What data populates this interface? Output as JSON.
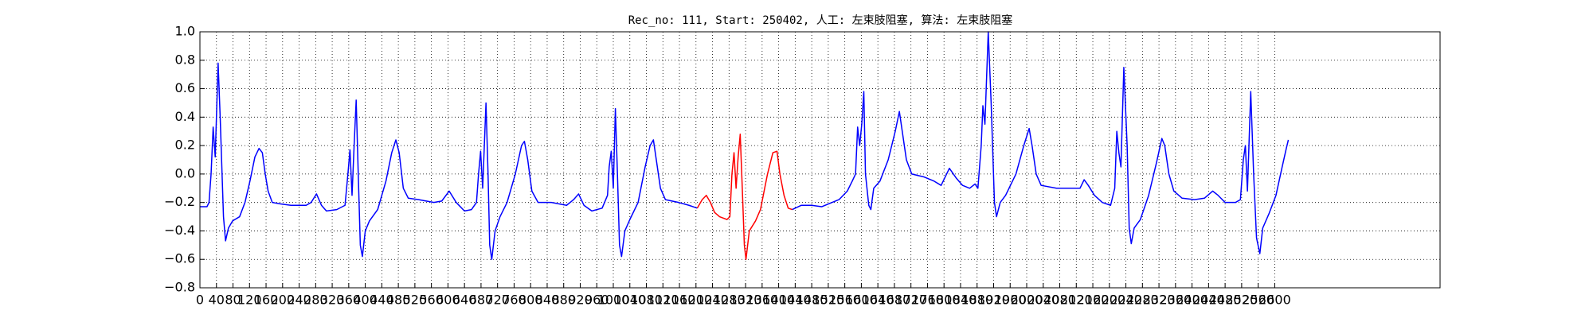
{
  "chart_data": {
    "type": "line",
    "title": "Rec_no: 111, Start: 250402, 人工: 左束肢阻塞, 算法: 左束肢阻塞",
    "xlim": [
      0,
      3000
    ],
    "ylim": [
      -0.8,
      1.0
    ],
    "xticks": [
      0,
      40,
      80,
      120,
      160,
      200,
      240,
      280,
      320,
      360,
      400,
      440,
      480,
      520,
      560,
      600,
      640,
      680,
      720,
      760,
      800,
      840,
      880,
      920,
      960,
      1000,
      1040,
      1080,
      1120,
      1160,
      1200,
      1240,
      1280,
      1320,
      1360,
      1400,
      1440,
      1480,
      1520,
      1560,
      1600,
      1640,
      1680,
      1720,
      1760,
      1800,
      1840,
      1880,
      1920,
      1960,
      2000,
      2040,
      2080,
      2120,
      2160,
      2200,
      2240,
      2280,
      2320,
      2360,
      2400,
      2440,
      2480,
      2520,
      2560,
      2600
    ],
    "yticks": [
      {
        "value": -0.8,
        "label": "−0.8"
      },
      {
        "value": -0.6,
        "label": "−0.6"
      },
      {
        "value": -0.4,
        "label": "−0.4"
      },
      {
        "value": -0.2,
        "label": "−0.2"
      },
      {
        "value": 0,
        "label": "0.0"
      },
      {
        "value": 0.2,
        "label": "0.2"
      },
      {
        "value": 0.4,
        "label": "0.4"
      },
      {
        "value": 0.6,
        "label": "0.6"
      },
      {
        "value": 0.8,
        "label": "0.8"
      },
      {
        "value": 1.0,
        "label": "1.0"
      }
    ],
    "grid": true,
    "series": [
      {
        "color": "#0000ff",
        "x": [
          0,
          17,
          22,
          27,
          32,
          37,
          44,
          49,
          57,
          62,
          69,
          79,
          96,
          109,
          121,
          133,
          143,
          151,
          158,
          165,
          175,
          195,
          220,
          257,
          269,
          282,
          294,
          306,
          331,
          351,
          358,
          363,
          368,
          373,
          378,
          383,
          388,
          393,
          400,
          410,
          430,
          450,
          464,
          474,
          482,
          492,
          504,
          529,
          566,
          585,
          603,
          620,
          640,
          657,
          669,
          674,
          679,
          684,
          692,
          697,
          701,
          706,
          714,
          726,
          743,
          763,
          778,
          785,
          793,
          803,
          818,
          850,
          887,
          904,
          916,
          929,
          948,
          973,
          986,
          990,
          995,
          1000,
          1005,
          1010,
          1015,
          1020,
          1028,
          1040,
          1060,
          1077,
          1089,
          1097,
          1104,
          1114,
          1126,
          1158,
          1183,
          1203
        ],
        "values": [
          -0.23,
          -0.23,
          -0.2,
          0.0,
          0.33,
          0.12,
          0.78,
          0.4,
          -0.3,
          -0.47,
          -0.38,
          -0.33,
          -0.3,
          -0.2,
          -0.05,
          0.12,
          0.18,
          0.15,
          0.0,
          -0.12,
          -0.2,
          -0.21,
          -0.22,
          -0.22,
          -0.2,
          -0.14,
          -0.22,
          -0.26,
          -0.25,
          -0.22,
          0.0,
          0.17,
          -0.15,
          0.2,
          0.52,
          0.0,
          -0.5,
          -0.58,
          -0.4,
          -0.33,
          -0.25,
          -0.05,
          0.15,
          0.24,
          0.15,
          -0.1,
          -0.17,
          -0.18,
          -0.2,
          -0.19,
          -0.12,
          -0.2,
          -0.26,
          -0.25,
          -0.2,
          0.0,
          0.16,
          -0.1,
          0.5,
          0.0,
          -0.5,
          -0.6,
          -0.4,
          -0.3,
          -0.2,
          0.0,
          0.2,
          0.23,
          0.1,
          -0.12,
          -0.2,
          -0.2,
          -0.22,
          -0.18,
          -0.14,
          -0.22,
          -0.26,
          -0.24,
          -0.15,
          0.05,
          0.16,
          -0.1,
          0.46,
          0.0,
          -0.5,
          -0.58,
          -0.4,
          -0.32,
          -0.2,
          0.05,
          0.2,
          0.24,
          0.1,
          -0.1,
          -0.18,
          -0.2,
          -0.22,
          -0.24
        ]
      },
      {
        "color": "#ff0000",
        "x": [
          1203,
          1215,
          1225,
          1235,
          1245,
          1257,
          1275,
          1282,
          1287,
          1292,
          1297,
          1302,
          1307,
          1312,
          1317,
          1321,
          1329,
          1344,
          1356,
          1373,
          1386,
          1396,
          1403,
          1413,
          1423,
          1433
        ],
        "values": [
          -0.24,
          -0.18,
          -0.15,
          -0.2,
          -0.27,
          -0.3,
          -0.32,
          -0.3,
          0.0,
          0.15,
          -0.1,
          0.12,
          0.28,
          -0.1,
          -0.5,
          -0.6,
          -0.4,
          -0.33,
          -0.25,
          0.0,
          0.15,
          0.16,
          0.0,
          -0.15,
          -0.24,
          -0.25
        ]
      },
      {
        "color": "#0000ff",
        "x": [
          1433,
          1455,
          1480,
          1504,
          1529,
          1546,
          1566,
          1578,
          1586,
          1591,
          1596,
          1601,
          1606,
          1610,
          1618,
          1623,
          1630,
          1645,
          1665,
          1682,
          1692,
          1699,
          1709,
          1722,
          1751,
          1776,
          1793,
          1813,
          1830,
          1845,
          1862,
          1875,
          1882,
          1890,
          1894,
          1899,
          1907,
          1914,
          1922,
          1927,
          1936,
          1949,
          1974,
          1993,
          2006,
          2013,
          2023,
          2035,
          2072,
          2109,
          2129,
          2139,
          2149,
          2164,
          2183,
          2203,
          2213,
          2218,
          2223,
          2228,
          2235,
          2243,
          2248,
          2253,
          2260,
          2275,
          2295,
          2314,
          2327,
          2334,
          2344,
          2356,
          2376,
          2406,
          2430,
          2450,
          2463,
          2480,
          2505,
          2517,
          2524,
          2529,
          2534,
          2542,
          2549,
          2556,
          2564,
          2571,
          2586,
          2603,
          2618,
          2628,
          2633
        ],
        "values": [
          -0.25,
          -0.22,
          -0.22,
          -0.23,
          -0.2,
          -0.18,
          -0.12,
          -0.05,
          0.0,
          0.33,
          0.2,
          0.35,
          0.58,
          0.0,
          -0.22,
          -0.25,
          -0.1,
          -0.05,
          0.1,
          0.3,
          0.44,
          0.3,
          0.1,
          0.0,
          -0.02,
          -0.05,
          -0.08,
          0.04,
          -0.03,
          -0.08,
          -0.1,
          -0.07,
          -0.1,
          0.2,
          0.48,
          0.35,
          1.0,
          0.5,
          -0.2,
          -0.3,
          -0.2,
          -0.15,
          0.0,
          0.2,
          0.32,
          0.2,
          0.0,
          -0.08,
          -0.1,
          -0.1,
          -0.1,
          -0.04,
          -0.08,
          -0.15,
          -0.2,
          -0.22,
          -0.1,
          0.3,
          0.15,
          0.05,
          0.75,
          0.2,
          -0.38,
          -0.49,
          -0.38,
          -0.32,
          -0.15,
          0.08,
          0.25,
          0.2,
          0.0,
          -0.12,
          -0.17,
          -0.18,
          -0.17,
          -0.12,
          -0.15,
          -0.2,
          -0.2,
          -0.18,
          0.1,
          0.2,
          -0.12,
          0.58,
          0.0,
          -0.45,
          -0.56,
          -0.38,
          -0.28,
          -0.15,
          0.05,
          0.18,
          0.24
        ]
      }
    ]
  }
}
